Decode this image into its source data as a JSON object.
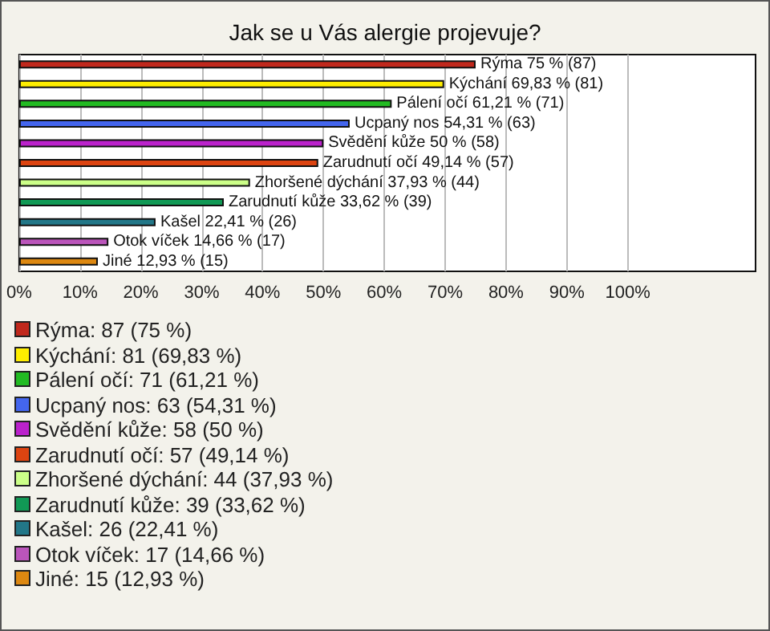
{
  "chart_data": {
    "type": "bar",
    "orientation": "horizontal",
    "title": "Jak se u Vás alergie projevuje?",
    "categories": [
      null,
      null,
      null,
      null,
      null,
      null,
      null,
      null,
      null,
      null,
      null
    ],
    "values": [
      75,
      69.83,
      61.21,
      54.31,
      50,
      49.14,
      37.93,
      33.62,
      22.41,
      14.66,
      12.93
    ],
    "value_labels": [
      "Rýma 75 % (87)",
      "Kýchání 69,83 % (81)",
      "Pálení očí 61,21 % (71)",
      "Ucpaný nos 54,31 % (63)",
      "Svědění kůže 50 % (58)",
      "Zarudnutí očí 49,14 % (57)",
      "Zhoršené dýchání 37,93 % (44)",
      "Zarudnutí kůže 33,62 % (39)",
      "Kašel 22,41 % (26)",
      "Otok víček 14,66 % (17)",
      "Jiné 12,93 % (15)"
    ],
    "colors": [
      "#c0281c",
      "#ffee00",
      "#22bb22",
      "#4466ee",
      "#bb22cc",
      "#dd4411",
      "#ccff88",
      "#119955",
      "#227788",
      "#bb55bb",
      "#dd8811"
    ],
    "xlim": [
      0,
      121
    ],
    "xticks": [
      {
        "value": 0,
        "label": "0%"
      },
      {
        "value": 10,
        "label": "10%"
      },
      {
        "value": 20,
        "label": "20%"
      },
      {
        "value": 30,
        "label": "30%"
      },
      {
        "value": 40,
        "label": "40%"
      },
      {
        "value": 50,
        "label": "50%"
      },
      {
        "value": 60,
        "label": "60%"
      },
      {
        "value": 70,
        "label": "70%"
      },
      {
        "value": 80,
        "label": "80%"
      },
      {
        "value": 90,
        "label": "90%"
      },
      {
        "value": 100,
        "label": "100%"
      }
    ],
    "grid": "x",
    "tick_labels": "x",
    "annotations": [
      "Rýma: 87 (75 %)",
      "Kýchání: 81 (69,83 %)",
      "Pálení očí: 71 (61,21 %)",
      "Ucpaný nos: 63 (54,31 %)",
      "Svědění kůže: 58 (50 %)",
      "Zarudnutí očí: 57 (49,14 %)",
      "Zhoršené dýchání: 44 (37,93 %)",
      "Zarudnutí kůže: 39 (33,62 %)",
      "Kašel: 26 (22,41 %)",
      "Otok víček: 17 (14,66 %)",
      "Jiné: 15 (12,93 %)"
    ]
  }
}
